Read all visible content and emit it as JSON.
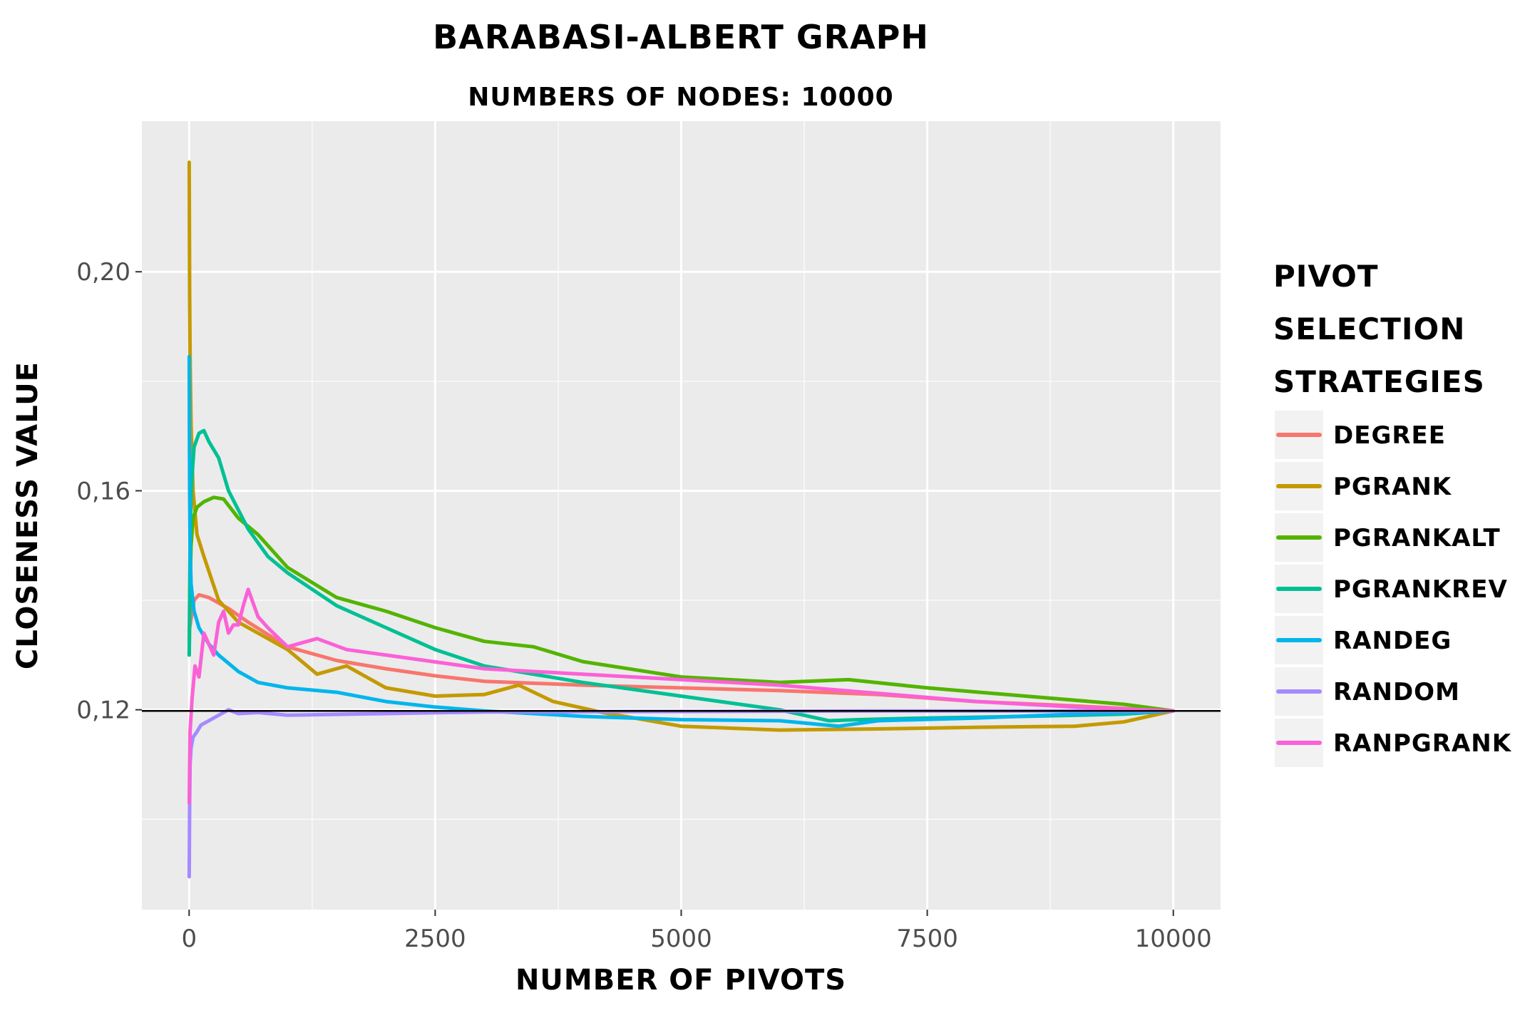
{
  "chart_data": {
    "type": "line",
    "title": "BARABASI-ALBERT GRAPH",
    "subtitle": "NUMBERS OF NODES: 10000",
    "xlabel": "NUMBER OF PIVOTS",
    "ylabel": "CLOSENESS VALUE",
    "xlim": [
      -480,
      10480
    ],
    "ylim": [
      0.0835,
      0.2275
    ],
    "x_ticks": [
      0,
      2500,
      5000,
      7500,
      10000
    ],
    "x_tick_labels": [
      "0",
      "2500",
      "5000",
      "7500",
      "10000"
    ],
    "y_ticks": [
      0.12,
      0.16,
      0.2
    ],
    "y_tick_labels": [
      "0,12",
      "0,16",
      "0,20"
    ],
    "y_minor_ticks": [
      0.1,
      0.14,
      0.18
    ],
    "x_minor_ticks": [
      1250,
      3750,
      6250,
      8750
    ],
    "grid": true,
    "reference_line": {
      "y": 0.1198,
      "color": "#000000"
    },
    "legend": {
      "title": "PIVOT SELECTION STRATEGIES",
      "title_lines": [
        "PIVOT",
        "SELECTION",
        "STRATEGIES"
      ],
      "placement": "right"
    },
    "series": [
      {
        "name": "DEGREE",
        "color": "#F8766D",
        "x": [
          1,
          50,
          100,
          200,
          400,
          600,
          1000,
          1500,
          2000,
          2500,
          3000,
          4000,
          5000,
          6000,
          7000,
          8000,
          9000,
          10000
        ],
        "y": [
          0.1345,
          0.14,
          0.141,
          0.1405,
          0.1385,
          0.136,
          0.1315,
          0.129,
          0.1275,
          0.1262,
          0.1252,
          0.1245,
          0.124,
          0.1235,
          0.1228,
          0.1215,
          0.1207,
          0.1198
        ]
      },
      {
        "name": "PGRANK",
        "color": "#C49A00",
        "x": [
          1,
          5,
          10,
          20,
          40,
          80,
          150,
          300,
          500,
          700,
          1000,
          1300,
          1600,
          2000,
          2500,
          3000,
          3350,
          3700,
          4200,
          5000,
          6000,
          7000,
          8000,
          9000,
          9500,
          10000
        ],
        "y": [
          0.22,
          0.196,
          0.185,
          0.172,
          0.16,
          0.152,
          0.148,
          0.14,
          0.136,
          0.134,
          0.131,
          0.1265,
          0.128,
          0.124,
          0.1225,
          0.1228,
          0.1245,
          0.1215,
          0.1195,
          0.117,
          0.1163,
          0.1165,
          0.1168,
          0.117,
          0.1178,
          0.1198
        ]
      },
      {
        "name": "PGRANKALT",
        "color": "#53B400",
        "x": [
          1,
          10,
          20,
          40,
          80,
          150,
          250,
          350,
          500,
          700,
          1000,
          1500,
          2000,
          2500,
          3000,
          3500,
          4000,
          5000,
          6000,
          6700,
          7500,
          8500,
          9500,
          10000
        ],
        "y": [
          0.13,
          0.143,
          0.15,
          0.155,
          0.157,
          0.158,
          0.1588,
          0.1585,
          0.155,
          0.152,
          0.146,
          0.1405,
          0.138,
          0.135,
          0.1325,
          0.1315,
          0.1288,
          0.126,
          0.125,
          0.1255,
          0.124,
          0.1225,
          0.121,
          0.1198
        ]
      },
      {
        "name": "PGRANKREV",
        "color": "#00C094",
        "x": [
          1,
          10,
          20,
          50,
          100,
          150,
          200,
          300,
          400,
          600,
          800,
          1000,
          1500,
          2000,
          2500,
          3000,
          4000,
          5000,
          6000,
          6500,
          6800,
          7500,
          8500,
          9500,
          10000
        ],
        "y": [
          0.13,
          0.15,
          0.16,
          0.168,
          0.1705,
          0.171,
          0.169,
          0.166,
          0.16,
          0.153,
          0.148,
          0.145,
          0.139,
          0.135,
          0.131,
          0.128,
          0.125,
          0.1225,
          0.12,
          0.118,
          0.1182,
          0.1185,
          0.1188,
          0.1192,
          0.1198
        ]
      },
      {
        "name": "RANDEG",
        "color": "#00B6EB",
        "x": [
          1,
          3,
          5,
          10,
          20,
          50,
          100,
          200,
          300,
          500,
          700,
          1000,
          1500,
          2000,
          2500,
          3000,
          3500,
          4000,
          5000,
          6000,
          6600,
          7000,
          8000,
          9000,
          10000
        ],
        "y": [
          0.1845,
          0.17,
          0.16,
          0.15,
          0.143,
          0.138,
          0.135,
          0.132,
          0.13,
          0.127,
          0.125,
          0.124,
          0.1232,
          0.1215,
          0.1205,
          0.1198,
          0.1193,
          0.1188,
          0.1182,
          0.118,
          0.117,
          0.118,
          0.1185,
          0.1192,
          0.1198
        ]
      },
      {
        "name": "RANDOM",
        "color": "#A58AFF",
        "x": [
          1,
          5,
          10,
          20,
          40,
          80,
          120,
          200,
          300,
          400,
          500,
          700,
          1000,
          2000,
          3000,
          5000,
          7000,
          10000
        ],
        "y": [
          0.0895,
          0.103,
          0.11,
          0.113,
          0.115,
          0.116,
          0.1172,
          0.118,
          0.119,
          0.12,
          0.1193,
          0.1195,
          0.119,
          0.1193,
          0.1196,
          0.1197,
          0.1198,
          0.1198
        ]
      },
      {
        "name": "RANPGRANK",
        "color": "#FB61D7",
        "x": [
          1,
          10,
          30,
          60,
          100,
          150,
          200,
          250,
          300,
          350,
          400,
          450,
          500,
          550,
          600,
          700,
          800,
          1000,
          1300,
          1600,
          2000,
          3000,
          4000,
          5000,
          6000,
          7000,
          8000,
          9000,
          10000
        ],
        "y": [
          0.103,
          0.116,
          0.122,
          0.128,
          0.126,
          0.134,
          0.132,
          0.13,
          0.136,
          0.138,
          0.134,
          0.1355,
          0.1355,
          0.139,
          0.142,
          0.137,
          0.135,
          0.1315,
          0.133,
          0.131,
          0.13,
          0.1275,
          0.1265,
          0.1255,
          0.1245,
          0.123,
          0.1215,
          0.1205,
          0.1198
        ]
      }
    ]
  }
}
